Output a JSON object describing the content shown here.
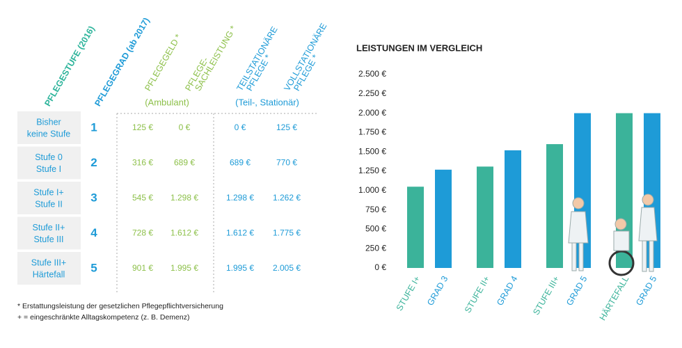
{
  "table": {
    "headers": [
      {
        "lines": [
          "PFLEGESTUFE (2016)"
        ],
        "color": "#2bb39a"
      },
      {
        "lines": [
          "PFLEGEGRAD (ab 2017)"
        ],
        "color": "#1e9bd7"
      },
      {
        "lines": [
          "PFLEGEGELD *"
        ],
        "color": "#8dc04a"
      },
      {
        "lines": [
          "PFLEGE-",
          "SACHLEISTUNG *"
        ],
        "color": "#8dc04a"
      },
      {
        "lines": [
          "TEILSTATIONÄRE",
          "PFLEGE *"
        ],
        "color": "#1e9bd7"
      },
      {
        "lines": [
          "VOLLSTATIONÄRE",
          "PFLEGE *"
        ],
        "color": "#1e9bd7"
      }
    ],
    "subheaders": [
      "(Ambulant)",
      "(Teil-, Stationär)"
    ],
    "rows": [
      {
        "stufe": [
          "Bisher",
          "keine Stufe"
        ],
        "grad": "1",
        "values": [
          "125 €",
          "0 €",
          "0 €",
          "125 €"
        ]
      },
      {
        "stufe": [
          "Stufe 0",
          "Stufe I"
        ],
        "grad": "2",
        "values": [
          "316 €",
          "689 €",
          "689 €",
          "770 €"
        ]
      },
      {
        "stufe": [
          "Stufe I+",
          "Stufe II"
        ],
        "grad": "3",
        "values": [
          "545 €",
          "1.298 €",
          "1.298 €",
          "1.262 €"
        ]
      },
      {
        "stufe": [
          "Stufe II+",
          "Stufe III"
        ],
        "grad": "4",
        "values": [
          "728 €",
          "1.612 €",
          "1.612 €",
          "1.775 €"
        ]
      },
      {
        "stufe": [
          "Stufe III+",
          "Härtefall"
        ],
        "grad": "5",
        "values": [
          "901 €",
          "1.995 €",
          "1.995 €",
          "2.005 €"
        ]
      }
    ]
  },
  "footnotes": [
    "* Erstattungsleistung der gesetzlichen Pflegepflichtversicherung",
    "+ = eingeschränkte Alltagskompetenz (z. B. Demenz)"
  ],
  "chart_data": {
    "type": "bar",
    "title": "LEISTUNGEN IM VERGLEICH",
    "categories": [
      "STUFE I+",
      "GRAD 3",
      "STUFE II+",
      "GRAD 4",
      "STUFE III+",
      "GRAD 5",
      "HÄRTEFALL",
      "GRAD 5"
    ],
    "values": [
      1050,
      1270,
      1310,
      1520,
      1600,
      2000,
      2000,
      2000
    ],
    "colors": [
      "#3bb39a",
      "#1e9bd7",
      "#3bb39a",
      "#1e9bd7",
      "#3bb39a",
      "#1e9bd7",
      "#3bb39a",
      "#1e9bd7"
    ],
    "ylim": [
      0,
      2500
    ],
    "yticks": [
      {
        "value": 0,
        "label": "0 €"
      },
      {
        "value": 250,
        "label": "250 €"
      },
      {
        "value": 500,
        "label": "500 €"
      },
      {
        "value": 750,
        "label": "750 €"
      },
      {
        "value": 1000,
        "label": "1.000 €"
      },
      {
        "value": 1250,
        "label": "1.250 €"
      },
      {
        "value": 1500,
        "label": "1.500 €"
      },
      {
        "value": 1750,
        "label": "1.750 €"
      },
      {
        "value": 2000,
        "label": "2.000 €"
      },
      {
        "value": 2250,
        "label": "2.250 €"
      },
      {
        "value": 2500,
        "label": "2.500 €"
      }
    ]
  }
}
